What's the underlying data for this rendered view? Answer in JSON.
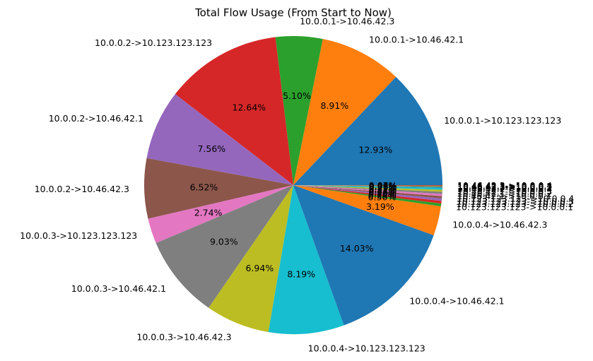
{
  "chart_data": {
    "type": "pie",
    "title": "Total Flow Usage (From Start to Now)",
    "start_angle_deg": 0,
    "direction": "counterclockwise",
    "slices": [
      {
        "label": "10.0.0.1->10.123.123.123",
        "value": 12.93,
        "pct_label": "12.93%",
        "color": "#1f77b4"
      },
      {
        "label": "10.0.0.1->10.46.42.1",
        "value": 8.91,
        "pct_label": "8.91%",
        "color": "#ff7f0e"
      },
      {
        "label": "10.0.0.1->10.46.42.3",
        "value": 5.1,
        "pct_label": "5.10%",
        "color": "#2ca02c"
      },
      {
        "label": "10.0.0.2->10.123.123.123",
        "value": 12.64,
        "pct_label": "12.64%",
        "color": "#d62728"
      },
      {
        "label": "10.0.0.2->10.46.42.1",
        "value": 7.56,
        "pct_label": "7.56%",
        "color": "#9467bd"
      },
      {
        "label": "10.0.0.2->10.46.42.3",
        "value": 6.52,
        "pct_label": "6.52%",
        "color": "#8c564b"
      },
      {
        "label": "10.0.0.3->10.123.123.123",
        "value": 2.74,
        "pct_label": "2.74%",
        "color": "#e377c2"
      },
      {
        "label": "10.0.0.3->10.46.42.1",
        "value": 9.03,
        "pct_label": "9.03%",
        "color": "#7f7f7f"
      },
      {
        "label": "10.0.0.3->10.46.42.3",
        "value": 6.94,
        "pct_label": "6.94%",
        "color": "#bcbd22"
      },
      {
        "label": "10.0.0.4->10.123.123.123",
        "value": 8.19,
        "pct_label": "8.19%",
        "color": "#17becf"
      },
      {
        "label": "10.0.0.4->10.46.42.1",
        "value": 14.03,
        "pct_label": "14.03%",
        "color": "#1f77b4"
      },
      {
        "label": "10.0.0.4->10.46.42.3",
        "value": 3.19,
        "pct_label": "3.19%",
        "color": "#ff7f0e"
      },
      {
        "label": "10.123.123.123->10.0.0.1",
        "value": 0.3,
        "pct_label": "0.30%",
        "color": "#2ca02c"
      },
      {
        "label": "10.123.123.123->10.0.0.2",
        "value": 0.29,
        "pct_label": "0.29%",
        "color": "#d62728"
      },
      {
        "label": "10.123.123.123->10.0.0.3",
        "value": 0.25,
        "pct_label": "0.25%",
        "color": "#9467bd"
      },
      {
        "label": "10.123.123.123->10.0.0.4",
        "value": 0.26,
        "pct_label": "0.26%",
        "color": "#8c564b"
      },
      {
        "label": "10.46.42.1->10.0.0.1",
        "value": 0.24,
        "pct_label": "0.24%",
        "color": "#e377c2"
      },
      {
        "label": "10.46.42.1->10.0.0.2",
        "value": 0.22,
        "pct_label": "0.22%",
        "color": "#7f7f7f"
      },
      {
        "label": "10.46.42.1->10.0.0.3",
        "value": 0.22,
        "pct_label": "0.22%",
        "color": "#bcbd22"
      },
      {
        "label": "10.46.42.1->10.0.0.4",
        "value": 0.23,
        "pct_label": "0.23%",
        "color": "#17becf"
      },
      {
        "label": "10.46.42.3->10.0.0.1",
        "value": 0.08,
        "pct_label": "0.08%",
        "color": "#1f77b4"
      },
      {
        "label": "10.46.42.3->10.0.0.2",
        "value": 0.06,
        "pct_label": "0.06%",
        "color": "#ff7f0e"
      },
      {
        "label": "10.46.42.3->10.0.0.3",
        "value": 0.06,
        "pct_label": "0.06%",
        "color": "#2ca02c"
      },
      {
        "label": "10.46.42.3->10.0.0.4",
        "value": 0.07,
        "pct_label": "0.07%",
        "color": "#d62728"
      }
    ]
  }
}
